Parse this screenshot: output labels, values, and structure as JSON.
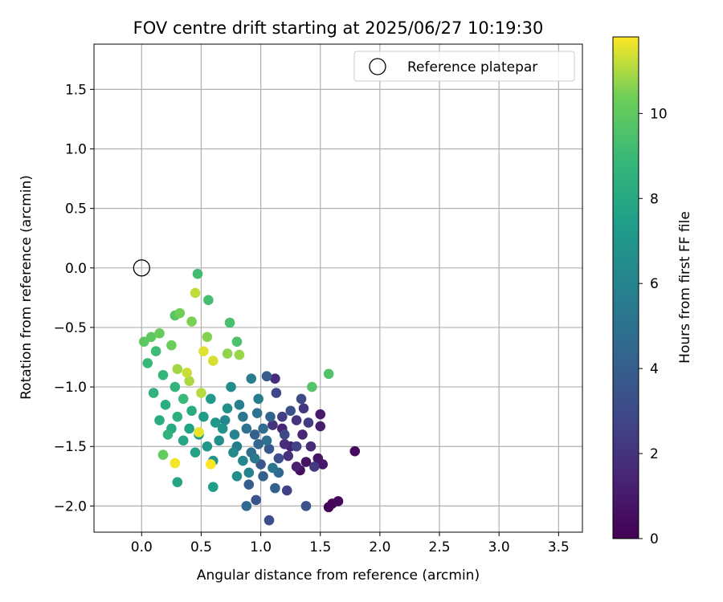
{
  "chart_data": {
    "type": "scatter",
    "title": "FOV centre drift starting at 2025/06/27 10:19:30",
    "xlabel": "Angular distance from reference (arcmin)",
    "ylabel": "Rotation from reference (arcmin)",
    "xlim": [
      -0.4,
      3.7
    ],
    "ylim": [
      -2.22,
      1.88
    ],
    "xticks": [
      0.0,
      0.5,
      1.0,
      1.5,
      2.0,
      2.5,
      3.0,
      3.5
    ],
    "xtick_labels": [
      "0.0",
      "0.5",
      "1.0",
      "1.5",
      "2.0",
      "2.5",
      "3.0",
      "3.5"
    ],
    "yticks": [
      1.5,
      1.0,
      0.5,
      0.0,
      -0.5,
      -1.0,
      -1.5,
      -2.0
    ],
    "ytick_labels": [
      "1.5",
      "1.0",
      "0.5",
      "0.0",
      "−0.5",
      "−1.0",
      "−1.5",
      "−2.0"
    ],
    "grid": true,
    "legend": {
      "position": "top-right",
      "entries": [
        "Reference platepar"
      ]
    },
    "reference_point": {
      "x": 0.0,
      "y": 0.0,
      "label": "Reference platepar"
    },
    "colorbar": {
      "label": "Hours from first FF file",
      "range": [
        0,
        11.8
      ],
      "ticks": [
        0,
        2,
        4,
        6,
        8,
        10
      ],
      "tick_labels": [
        "0",
        "2",
        "4",
        "6",
        "8",
        "10"
      ],
      "colormap": "viridis"
    },
    "points": [
      [
        1.57,
        -2.01,
        0.1
      ],
      [
        1.6,
        -1.98,
        0.2
      ],
      [
        1.65,
        -1.96,
        0.3
      ],
      [
        1.79,
        -1.54,
        0.4
      ],
      [
        1.33,
        -1.7,
        0.5
      ],
      [
        1.38,
        -1.63,
        0.7
      ],
      [
        1.48,
        -1.6,
        0.8
      ],
      [
        1.52,
        -1.65,
        0.9
      ],
      [
        1.5,
        -1.23,
        1.0
      ],
      [
        1.5,
        -1.33,
        1.1
      ],
      [
        1.3,
        -1.67,
        1.2
      ],
      [
        1.25,
        -1.5,
        1.3
      ],
      [
        1.18,
        -1.35,
        1.4
      ],
      [
        1.35,
        -1.4,
        1.5
      ],
      [
        1.42,
        -1.5,
        1.6
      ],
      [
        1.12,
        -0.93,
        1.7
      ],
      [
        1.2,
        -1.48,
        1.8
      ],
      [
        1.23,
        -1.58,
        1.9
      ],
      [
        1.1,
        -1.32,
        2.0
      ],
      [
        1.3,
        -1.28,
        2.1
      ],
      [
        1.36,
        -1.18,
        2.2
      ],
      [
        1.45,
        -1.67,
        2.3
      ],
      [
        1.4,
        -1.3,
        2.4
      ],
      [
        1.18,
        -1.25,
        2.5
      ],
      [
        1.22,
        -1.87,
        2.6
      ],
      [
        1.3,
        -1.5,
        2.7
      ],
      [
        1.13,
        -1.05,
        2.8
      ],
      [
        1.2,
        -1.4,
        2.9
      ],
      [
        1.34,
        -1.1,
        3.0
      ],
      [
        1.07,
        -2.12,
        3.1
      ],
      [
        1.15,
        -1.6,
        3.2
      ],
      [
        1.25,
        -1.2,
        3.3
      ],
      [
        1.38,
        -2.0,
        3.4
      ],
      [
        0.96,
        -1.95,
        3.5
      ],
      [
        1.0,
        -1.65,
        3.6
      ],
      [
        1.07,
        -1.52,
        3.7
      ],
      [
        1.05,
        -0.91,
        3.8
      ],
      [
        0.9,
        -1.82,
        3.9
      ],
      [
        1.02,
        -1.75,
        4.0
      ],
      [
        1.12,
        -1.85,
        4.1
      ],
      [
        0.95,
        -1.4,
        4.2
      ],
      [
        1.08,
        -1.25,
        4.3
      ],
      [
        0.98,
        -1.48,
        4.4
      ],
      [
        1.15,
        -1.72,
        4.5
      ],
      [
        0.88,
        -2.0,
        4.6
      ],
      [
        1.02,
        -1.35,
        4.7
      ],
      [
        0.92,
        -1.55,
        4.8
      ],
      [
        1.05,
        -1.45,
        4.9
      ],
      [
        0.88,
        -1.35,
        5.0
      ],
      [
        0.97,
        -1.22,
        5.1
      ],
      [
        1.1,
        -1.68,
        5.2
      ],
      [
        0.85,
        -1.25,
        5.3
      ],
      [
        0.95,
        -1.6,
        5.4
      ],
      [
        0.8,
        -1.5,
        5.5
      ],
      [
        0.98,
        -1.1,
        5.6
      ],
      [
        0.92,
        -0.93,
        5.7
      ],
      [
        0.82,
        -1.15,
        5.8
      ],
      [
        0.9,
        -1.72,
        5.9
      ],
      [
        0.78,
        -1.4,
        6.0
      ],
      [
        0.85,
        -1.62,
        6.1
      ],
      [
        0.7,
        -1.28,
        6.2
      ],
      [
        0.77,
        -1.55,
        6.3
      ],
      [
        0.75,
        -1.0,
        6.4
      ],
      [
        0.8,
        -1.75,
        6.5
      ],
      [
        0.65,
        -1.45,
        6.6
      ],
      [
        0.72,
        -1.18,
        6.7
      ],
      [
        0.68,
        -1.35,
        6.8
      ],
      [
        0.6,
        -1.62,
        6.9
      ],
      [
        0.62,
        -1.3,
        7.0
      ],
      [
        0.55,
        -1.5,
        7.1
      ],
      [
        0.58,
        -1.1,
        7.2
      ],
      [
        0.48,
        -1.4,
        7.3
      ],
      [
        0.52,
        -1.25,
        7.4
      ],
      [
        0.6,
        -1.84,
        7.5
      ],
      [
        0.45,
        -1.55,
        7.6
      ],
      [
        0.4,
        -1.35,
        7.7
      ],
      [
        0.3,
        -1.8,
        7.8
      ],
      [
        0.35,
        -1.45,
        7.9
      ],
      [
        0.25,
        -1.35,
        8.0
      ],
      [
        0.42,
        -1.2,
        8.1
      ],
      [
        0.15,
        -1.28,
        8.2
      ],
      [
        0.2,
        -1.15,
        8.3
      ],
      [
        0.3,
        -1.25,
        8.4
      ],
      [
        0.1,
        -1.05,
        8.5
      ],
      [
        0.22,
        -1.4,
        8.6
      ],
      [
        0.28,
        -1.0,
        8.7
      ],
      [
        0.18,
        -0.9,
        8.8
      ],
      [
        0.05,
        -0.8,
        8.9
      ],
      [
        0.35,
        -1.1,
        9.0
      ],
      [
        0.12,
        -0.7,
        9.1
      ],
      [
        0.47,
        -0.05,
        9.2
      ],
      [
        0.56,
        -0.27,
        9.3
      ],
      [
        0.74,
        -0.46,
        9.4
      ],
      [
        0.8,
        -0.62,
        9.5
      ],
      [
        1.57,
        -0.89,
        9.6
      ],
      [
        1.43,
        -1.0,
        9.7
      ],
      [
        0.28,
        -0.4,
        9.8
      ],
      [
        0.02,
        -0.62,
        9.9
      ],
      [
        0.08,
        -0.58,
        10.0
      ],
      [
        0.18,
        -1.57,
        10.1
      ],
      [
        0.15,
        -0.55,
        10.2
      ],
      [
        0.25,
        -0.65,
        10.3
      ],
      [
        0.32,
        -0.38,
        10.4
      ],
      [
        0.42,
        -0.45,
        10.5
      ],
      [
        0.55,
        -0.58,
        10.6
      ],
      [
        0.72,
        -0.72,
        10.7
      ],
      [
        0.82,
        -0.73,
        10.8
      ],
      [
        0.3,
        -0.85,
        10.9
      ],
      [
        0.4,
        -0.95,
        11.0
      ],
      [
        0.5,
        -1.05,
        11.1
      ],
      [
        0.45,
        -0.21,
        11.2
      ],
      [
        0.38,
        -0.88,
        11.3
      ],
      [
        0.6,
        -0.78,
        11.4
      ],
      [
        0.52,
        -0.7,
        11.5
      ],
      [
        0.48,
        -1.38,
        11.6
      ],
      [
        0.28,
        -1.64,
        11.7
      ],
      [
        0.58,
        -1.65,
        11.8
      ]
    ]
  }
}
